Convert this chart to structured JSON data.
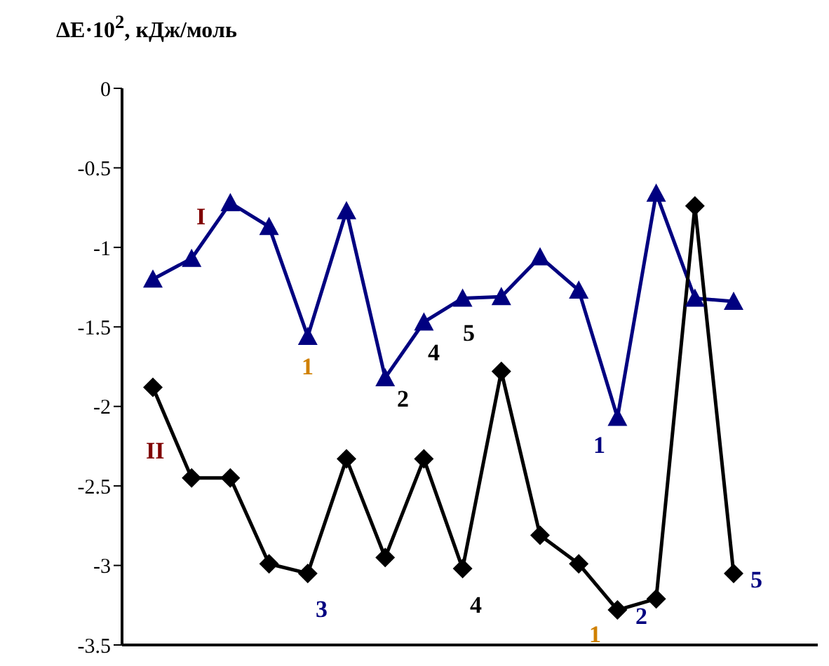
{
  "chart_data": {
    "type": "line",
    "ylabel": "ΔE·10$^{2}$, кДж/моль",
    "categories": [
      null,
      null,
      null,
      null,
      null,
      null,
      null,
      null,
      null,
      null,
      null,
      null,
      null,
      null,
      null,
      null
    ],
    "series": [
      {
        "color": "#000080",
        "marker": "triangle",
        "values": [
          -1.2,
          -1.07,
          -0.72,
          -0.87,
          -1.56,
          -0.77,
          -1.82,
          -1.47,
          -1.32,
          -1.31,
          -1.06,
          -1.27,
          -2.07,
          -0.66,
          -1.32,
          -1.34
        ]
      },
      {
        "color": "#000000",
        "marker": "diamond",
        "values": [
          -1.88,
          -2.45,
          -2.45,
          -2.99,
          -3.05,
          -2.33,
          -2.95,
          -2.33,
          -3.02,
          -1.78,
          -2.81,
          -2.99,
          -3.28,
          -3.21,
          -0.74,
          -3.05
        ]
      }
    ],
    "ylim": [
      -3.5,
      0
    ],
    "yticks": [
      0,
      -0.5,
      -1,
      -1.5,
      -2,
      -2.5,
      -3,
      -3.5
    ],
    "tick_labels": "y",
    "grid": false,
    "legend": false,
    "annotations": [
      "I",
      "II",
      "1",
      "2",
      "4",
      "5",
      "1",
      "3",
      "4",
      "1",
      "2",
      "5"
    ]
  }
}
